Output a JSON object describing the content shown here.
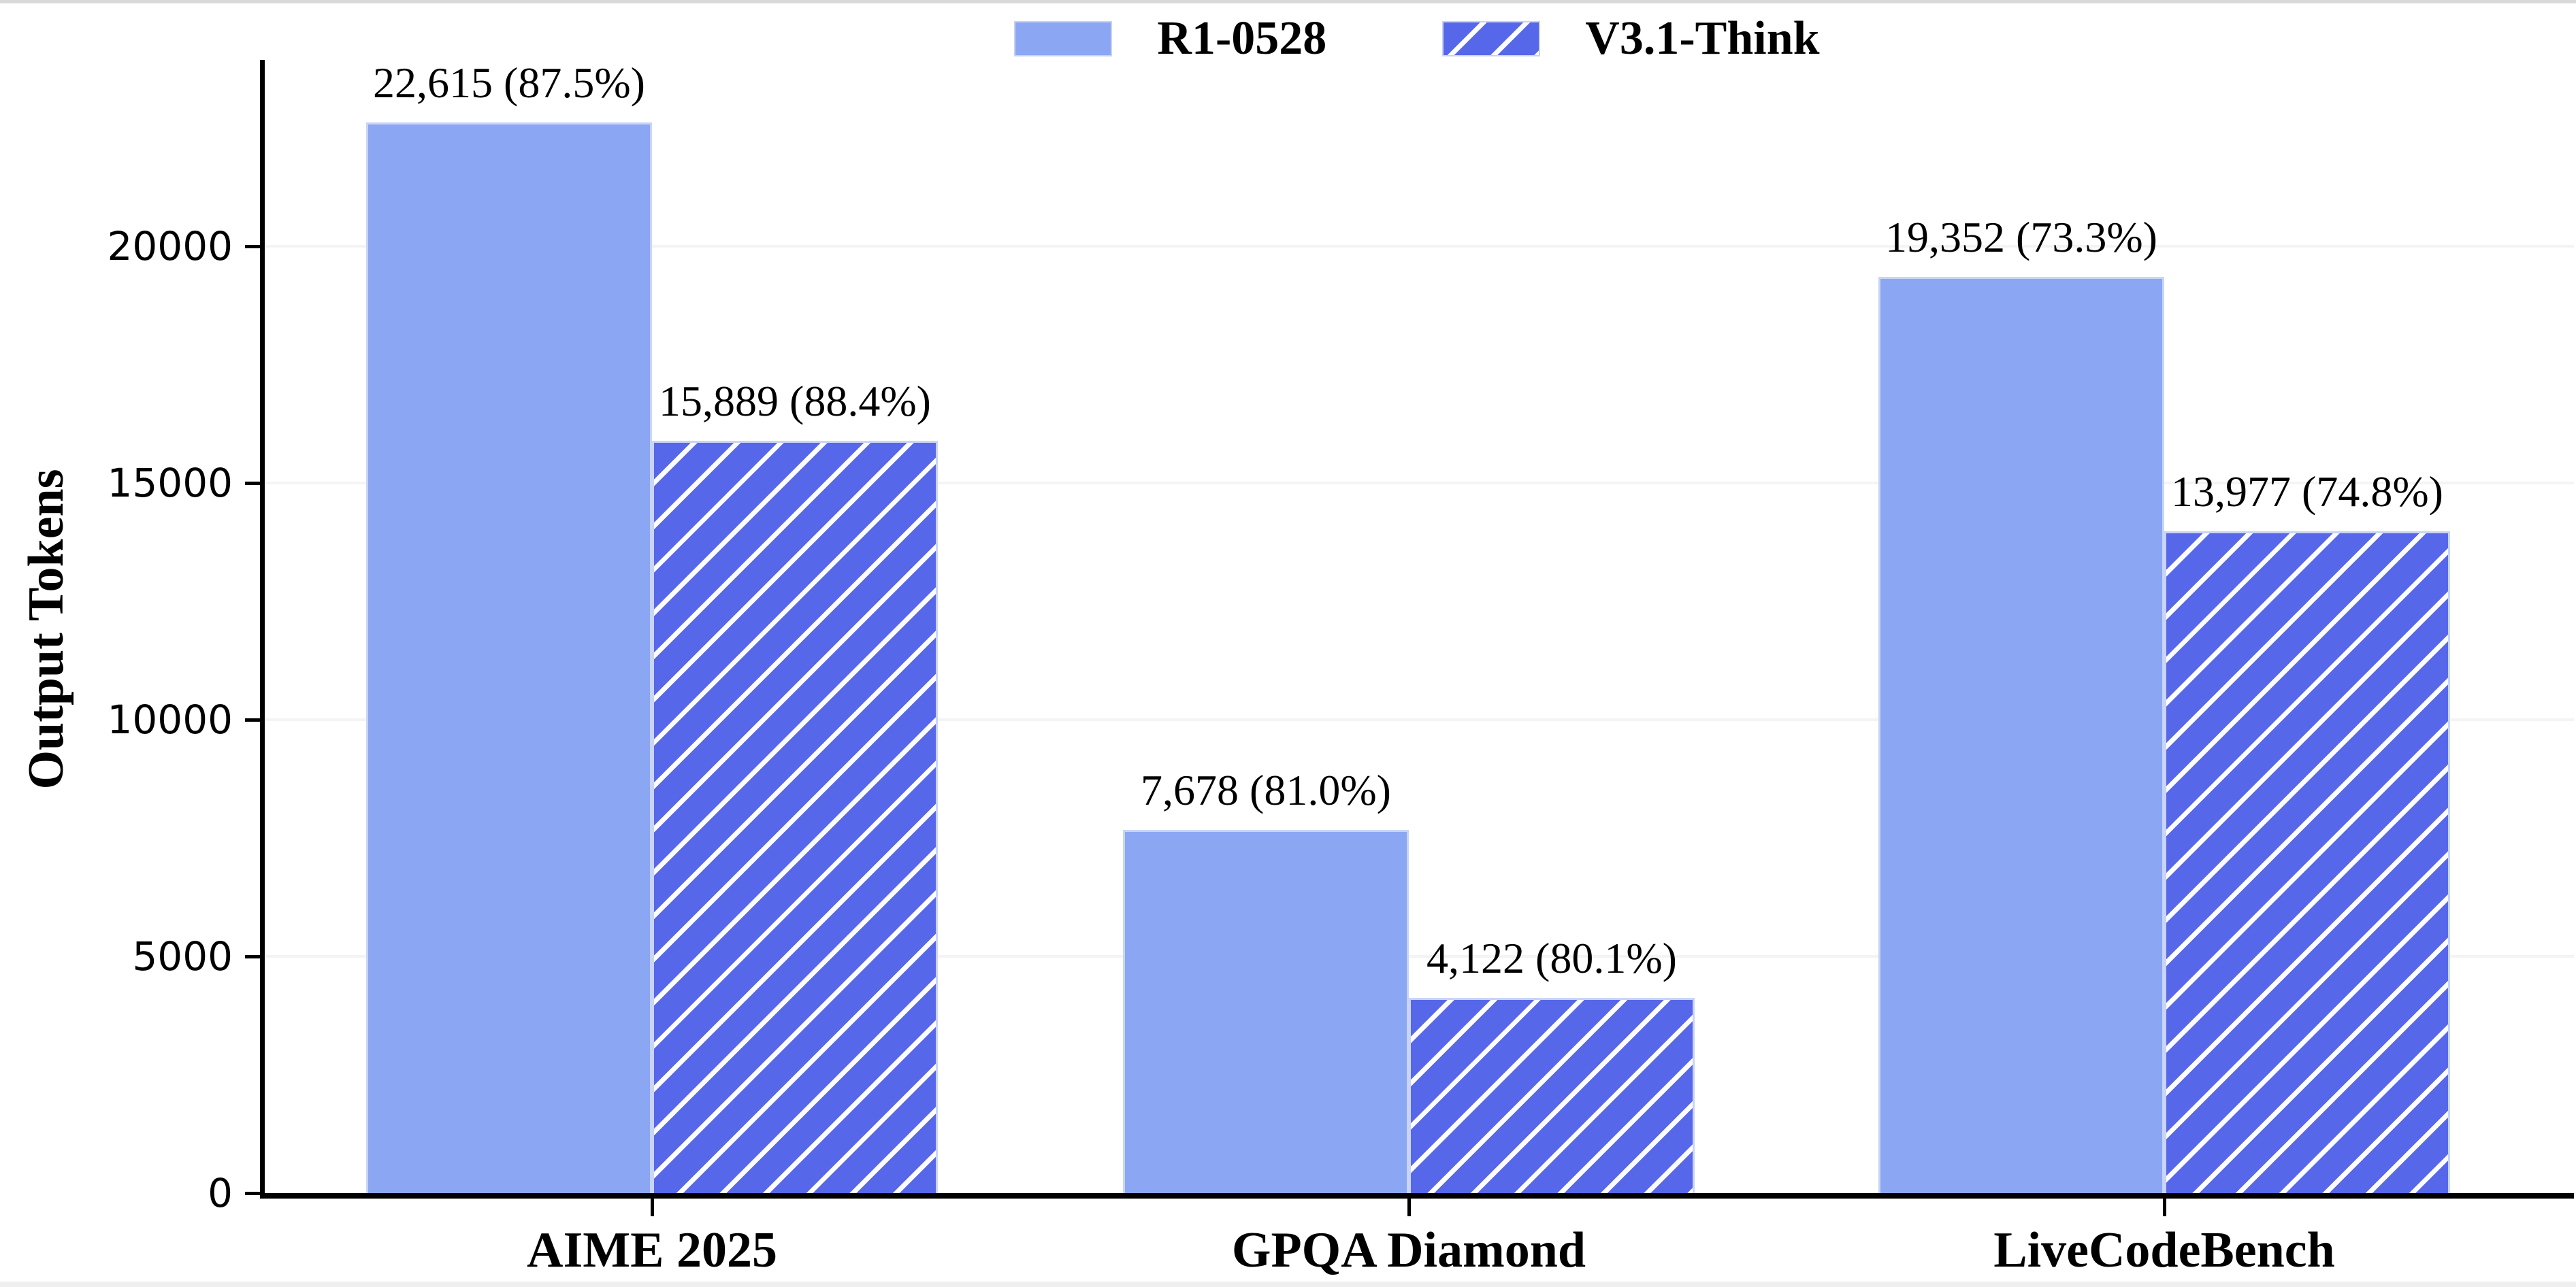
{
  "figure": {
    "background": "#ffffff",
    "edge_line_color": "#d9d9d9"
  },
  "legend": {
    "position": "top center",
    "items": [
      {
        "label": "R1-0528",
        "swatch": "solid-swatch"
      },
      {
        "label": "V3.1-Think",
        "swatch": "hatched-swatch"
      }
    ]
  },
  "chart_data": {
    "type": "bar",
    "title": "",
    "xlabel": "",
    "ylabel": "Output Tokens",
    "categories": [
      "AIME 2025",
      "GPQA Diamond",
      "LiveCodeBench"
    ],
    "series": [
      {
        "name": "R1-0528",
        "style": "solid",
        "color": "#8BA7F3",
        "values": [
          22615,
          7678,
          19352
        ],
        "accuracy_pct": [
          87.5,
          81.0,
          73.3
        ],
        "bar_labels": [
          "22,615 (87.5%)",
          "7,678 (81.0%)",
          "19,352 (73.3%)"
        ]
      },
      {
        "name": "V3.1-Think",
        "style": "hatched",
        "color": "#5767E9",
        "hatch": "/",
        "hatch_color": "#fdfdff",
        "values": [
          15889,
          4122,
          13977
        ],
        "accuracy_pct": [
          88.4,
          80.1,
          74.8
        ],
        "bar_labels": [
          "15,889 (88.4%)",
          "4,122 (80.1%)",
          "13,977 (74.8%)"
        ]
      }
    ],
    "yticks": [
      0,
      5000,
      10000,
      15000,
      20000
    ],
    "ytick_labels": [
      "0",
      "5000",
      "10000",
      "15000",
      "20000"
    ],
    "ylim": [
      0,
      23900
    ],
    "grid": "horizontal light-gray lines at yticks",
    "legend_position": "upper center, outside plot",
    "colors": {
      "axis": "#000000",
      "gridline": "#f4f4f4",
      "text": "#000000",
      "bar_edge": "#c9d4f7"
    }
  }
}
